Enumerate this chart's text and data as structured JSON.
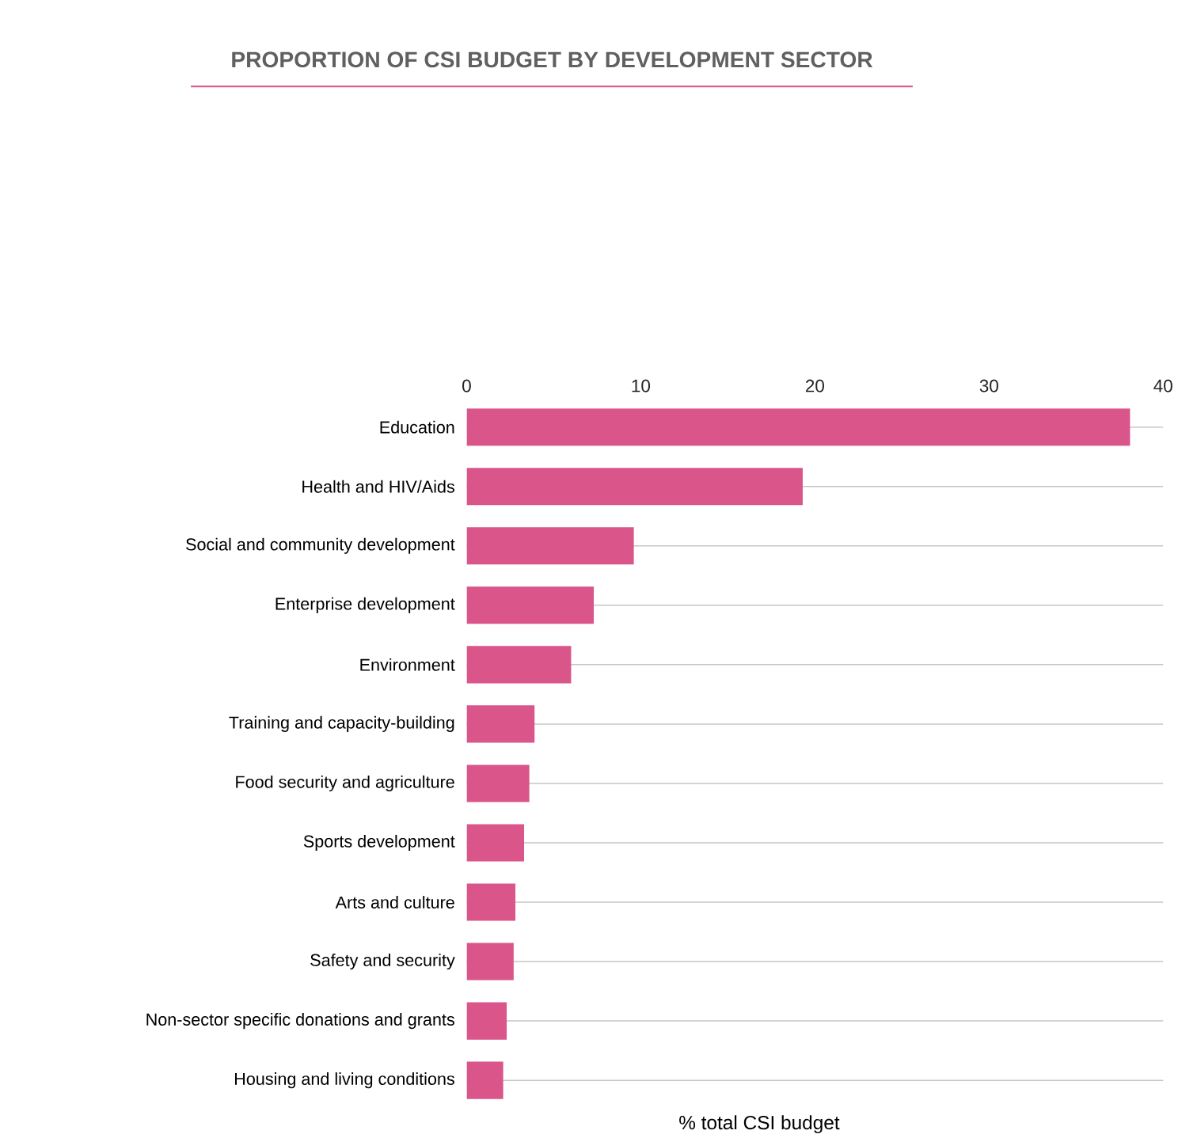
{
  "chart_data": {
    "type": "bar",
    "orientation": "horizontal",
    "title": "PROPORTION OF CSI BUDGET BY DEVELOPMENT SECTOR",
    "xlabel": "% total CSI budget",
    "categories": [
      "Education",
      "Health and HIV/Aids",
      "Social and community development",
      "Enterprise development",
      "Environment",
      "Training and capacity-building",
      "Food security and agriculture",
      "Sports development",
      "Arts and culture",
      "Safety and security",
      "Non-sector specific donations and grants",
      "Housing and living conditions"
    ],
    "values": [
      38.1,
      19.3,
      9.6,
      7.3,
      6.0,
      3.9,
      3.6,
      3.3,
      2.8,
      2.7,
      2.3,
      2.1
    ],
    "color": "#d9558a",
    "xlim": [
      0,
      40
    ],
    "xticks": [
      0,
      10,
      20,
      30,
      40
    ],
    "grid": "y"
  }
}
